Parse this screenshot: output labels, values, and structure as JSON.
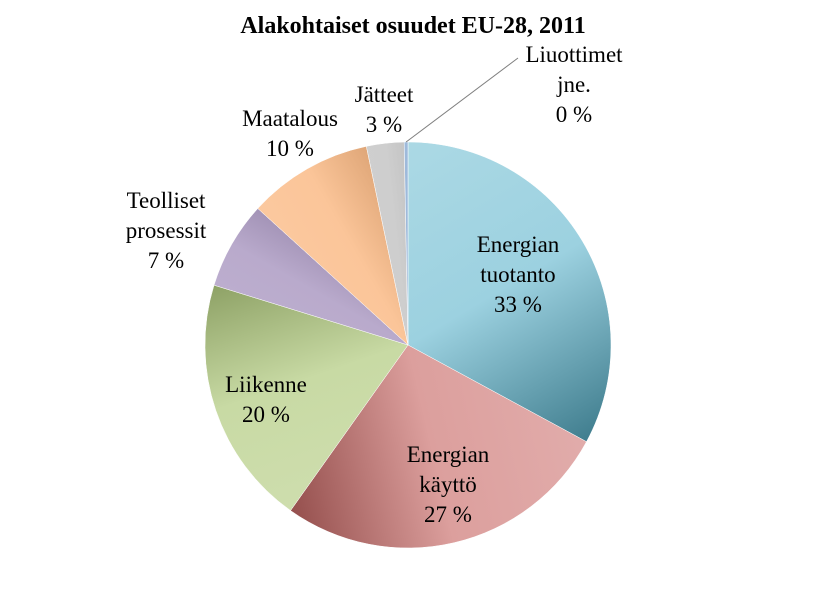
{
  "chart_data": {
    "type": "pie",
    "title": "Alakohtaiset osuudet EU-28, 2011",
    "slices": [
      {
        "name_lines": [
          "Energian",
          "tuotanto"
        ],
        "pct_label": "33 %",
        "value": 33,
        "color": "#4BACC6"
      },
      {
        "name_lines": [
          "Energian",
          "käyttö"
        ],
        "pct_label": "27 %",
        "value": 27,
        "color": "#C0504D"
      },
      {
        "name_lines": [
          "Liikenne"
        ],
        "pct_label": "20 %",
        "value": 20,
        "color": "#9BBB59"
      },
      {
        "name_lines": [
          "Teolliset",
          "prosessit"
        ],
        "pct_label": "7 %",
        "value": 7,
        "color": "#8064A2"
      },
      {
        "name_lines": [
          "Maatalous"
        ],
        "pct_label": "10 %",
        "value": 10,
        "color": "#F79646"
      },
      {
        "name_lines": [
          "Jätteet"
        ],
        "pct_label": "3 %",
        "value": 3,
        "color": "#A5A5A5"
      },
      {
        "name_lines": [
          "Liuottimet",
          "jne."
        ],
        "pct_label": "0 %",
        "value": 0.3,
        "color": "#4F81BD"
      }
    ]
  }
}
